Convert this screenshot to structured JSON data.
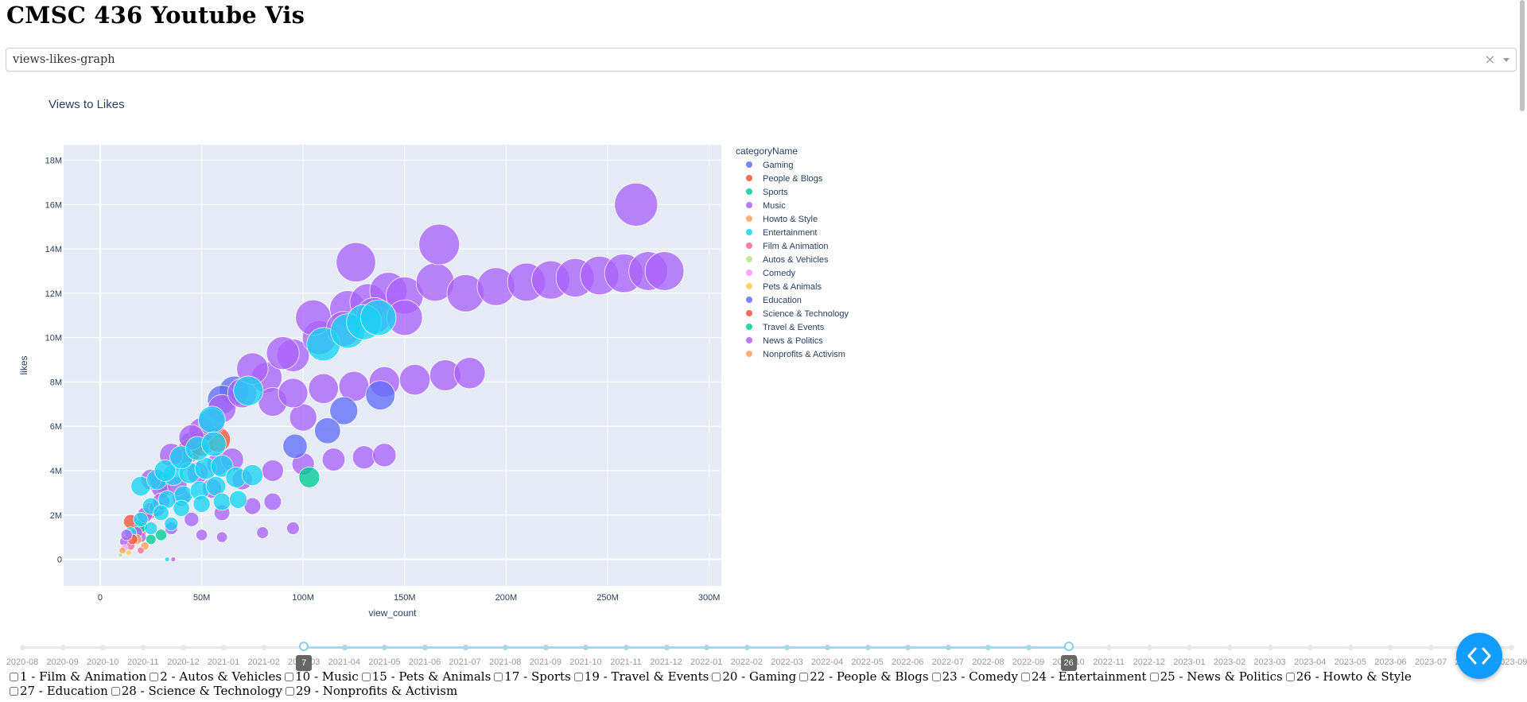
{
  "app": {
    "title": "CMSC 436 Youtube Vis"
  },
  "dropdown": {
    "value": "views-likes-graph",
    "clear_icon": "×"
  },
  "chart_data": {
    "type": "scatter",
    "title": "Views to Likes",
    "xlabel": "view_count",
    "ylabel": "likes",
    "xlim": [
      -18000000,
      306000000
    ],
    "ylim": [
      -1200000,
      18700000
    ],
    "xticks": [
      0,
      50000000,
      100000000,
      150000000,
      200000000,
      250000000,
      300000000
    ],
    "xtick_labels": [
      "0",
      "50M",
      "100M",
      "150M",
      "200M",
      "250M",
      "300M"
    ],
    "yticks": [
      0,
      2000000,
      4000000,
      6000000,
      8000000,
      10000000,
      12000000,
      14000000,
      16000000,
      18000000
    ],
    "ytick_labels": [
      "0",
      "2M",
      "4M",
      "6M",
      "8M",
      "10M",
      "12M",
      "14M",
      "16M",
      "18M"
    ],
    "grid": true,
    "legend_title": "categoryName",
    "legend_position": "right",
    "series": [
      {
        "name": "Gaming",
        "color": "#636efa",
        "points": [
          [
            66000000,
            7600000
          ],
          [
            60000000,
            7200000
          ],
          [
            45000000,
            5200000
          ],
          [
            30000000,
            3500000
          ]
        ]
      },
      {
        "name": "People & Blogs",
        "color": "#EF553B",
        "points": [
          [
            44000000,
            4900000
          ],
          [
            50000000,
            5200000
          ],
          [
            58000000,
            5400000
          ],
          [
            15000000,
            1700000
          ],
          [
            25000000,
            2200000
          ],
          [
            20000000,
            1300000
          ]
        ]
      },
      {
        "name": "Sports",
        "color": "#00cc96",
        "points": [
          [
            20000000,
            1500000
          ],
          [
            25000000,
            900000
          ],
          [
            30000000,
            1100000
          ]
        ]
      },
      {
        "name": "Music",
        "color": "#ab63fa",
        "points": [
          [
            22000000,
            2000000
          ],
          [
            30000000,
            3200000
          ],
          [
            40000000,
            4500000
          ],
          [
            50000000,
            5800000
          ],
          [
            60000000,
            6800000
          ],
          [
            70000000,
            7500000
          ],
          [
            82000000,
            8200000
          ],
          [
            95000000,
            9200000
          ],
          [
            108000000,
            10000000
          ],
          [
            122000000,
            11300000
          ],
          [
            132000000,
            11600000
          ],
          [
            142000000,
            12100000
          ],
          [
            150000000,
            11900000
          ],
          [
            165000000,
            12500000
          ],
          [
            180000000,
            12000000
          ],
          [
            195000000,
            12300000
          ],
          [
            210000000,
            12500000
          ],
          [
            222000000,
            12600000
          ],
          [
            234000000,
            12700000
          ],
          [
            246000000,
            12800000
          ],
          [
            258000000,
            12900000
          ],
          [
            270000000,
            13000000
          ],
          [
            278000000,
            13000000
          ],
          [
            126000000,
            13400000
          ],
          [
            167000000,
            14200000
          ],
          [
            264000000,
            16000000
          ],
          [
            75000000,
            8600000
          ],
          [
            90000000,
            9300000
          ],
          [
            105000000,
            10900000
          ],
          [
            120000000,
            10400000
          ],
          [
            135000000,
            11000000
          ],
          [
            150000000,
            10900000
          ],
          [
            100000000,
            6400000
          ],
          [
            85000000,
            7100000
          ],
          [
            95000000,
            7500000
          ],
          [
            110000000,
            7700000
          ],
          [
            125000000,
            7800000
          ],
          [
            140000000,
            8000000
          ],
          [
            155000000,
            8100000
          ],
          [
            170000000,
            8300000
          ],
          [
            182000000,
            8400000
          ],
          [
            55000000,
            6200000
          ],
          [
            45000000,
            5500000
          ],
          [
            35000000,
            4700000
          ],
          [
            25000000,
            3600000
          ],
          [
            28000000,
            2300000
          ],
          [
            40000000,
            2800000
          ],
          [
            55000000,
            3200000
          ],
          [
            70000000,
            3600000
          ],
          [
            85000000,
            4000000
          ],
          [
            100000000,
            4300000
          ],
          [
            115000000,
            4500000
          ],
          [
            130000000,
            4600000
          ],
          [
            140000000,
            4700000
          ],
          [
            45000000,
            1800000
          ],
          [
            60000000,
            2100000
          ],
          [
            75000000,
            2400000
          ],
          [
            85000000,
            2600000
          ],
          [
            20000000,
            1000000
          ],
          [
            35000000,
            1400000
          ],
          [
            50000000,
            1100000
          ],
          [
            60000000,
            1000000
          ],
          [
            80000000,
            1200000
          ],
          [
            95000000,
            1400000
          ],
          [
            12000000,
            800000
          ],
          [
            18000000,
            1200000
          ],
          [
            30000000,
            2600000
          ],
          [
            38000000,
            3300000
          ],
          [
            48000000,
            3900000
          ],
          [
            58000000,
            4300000
          ],
          [
            65000000,
            4500000
          ],
          [
            36000000,
            0
          ]
        ]
      },
      {
        "name": "Howto & Style",
        "color": "#FFA15A",
        "points": [
          [
            18000000,
            900000
          ],
          [
            22000000,
            600000
          ]
        ]
      },
      {
        "name": "Entertainment",
        "color": "#19d3f3",
        "points": [
          [
            55000000,
            6300000
          ],
          [
            73000000,
            7600000
          ],
          [
            110000000,
            9700000
          ],
          [
            122000000,
            10300000
          ],
          [
            130000000,
            10700000
          ],
          [
            137000000,
            10900000
          ],
          [
            20000000,
            3300000
          ],
          [
            28000000,
            3600000
          ],
          [
            36000000,
            3800000
          ],
          [
            44000000,
            3900000
          ],
          [
            52000000,
            4100000
          ],
          [
            60000000,
            4200000
          ],
          [
            25000000,
            2400000
          ],
          [
            33000000,
            2700000
          ],
          [
            41000000,
            2900000
          ],
          [
            49000000,
            3100000
          ],
          [
            57000000,
            3300000
          ],
          [
            67000000,
            3700000
          ],
          [
            75000000,
            3800000
          ],
          [
            20000000,
            1800000
          ],
          [
            30000000,
            2100000
          ],
          [
            40000000,
            2300000
          ],
          [
            50000000,
            2500000
          ],
          [
            60000000,
            2600000
          ],
          [
            68000000,
            2700000
          ],
          [
            15000000,
            1200000
          ],
          [
            25000000,
            1400000
          ],
          [
            35000000,
            1600000
          ],
          [
            32000000,
            4000000
          ],
          [
            40000000,
            4600000
          ],
          [
            48000000,
            5000000
          ],
          [
            56000000,
            5200000
          ],
          [
            33000000,
            0
          ]
        ]
      },
      {
        "name": "Film & Animation",
        "color": "#FF6692",
        "points": [
          [
            15000000,
            600000
          ],
          [
            20000000,
            400000
          ]
        ]
      },
      {
        "name": "Autos & Vehicles",
        "color": "#B6E880",
        "points": [
          [
            10000000,
            200000
          ]
        ]
      },
      {
        "name": "Comedy",
        "color": "#FF97FF",
        "points": [
          [
            12000000,
            500000
          ]
        ]
      },
      {
        "name": "Pets & Animals",
        "color": "#FECB52",
        "points": [
          [
            14000000,
            300000
          ]
        ]
      },
      {
        "name": "Education",
        "color": "#636efa",
        "points": [
          [
            120000000,
            6700000
          ],
          [
            112000000,
            5800000
          ],
          [
            96000000,
            5100000
          ],
          [
            138000000,
            7400000
          ]
        ]
      },
      {
        "name": "Science & Technology",
        "color": "#EF553B",
        "points": [
          [
            16000000,
            900000
          ]
        ]
      },
      {
        "name": "Travel & Events",
        "color": "#00cc96",
        "points": [
          [
            103000000,
            3700000
          ]
        ]
      },
      {
        "name": "News & Politics",
        "color": "#ab63fa",
        "points": [
          [
            13000000,
            1100000
          ]
        ]
      },
      {
        "name": "Nonprofits & Activism",
        "color": "#FFA15A",
        "points": [
          [
            11000000,
            400000
          ]
        ]
      }
    ]
  },
  "slider": {
    "marks": [
      "2020-08",
      "2020-09",
      "2020-10",
      "2020-11",
      "2020-12",
      "2021-01",
      "2021-02",
      "2021-03",
      "2021-04",
      "2021-05",
      "2021-06",
      "2021-07",
      "2021-08",
      "2021-09",
      "2021-10",
      "2021-11",
      "2021-12",
      "2022-01",
      "2022-02",
      "2022-03",
      "2022-04",
      "2022-05",
      "2022-06",
      "2022-07",
      "2022-08",
      "2022-09",
      "2022-10",
      "2022-11",
      "2022-12",
      "2023-01",
      "2023-02",
      "2023-03",
      "2023-04",
      "2023-05",
      "2023-06",
      "2023-07",
      "2023-08",
      "2023-09"
    ],
    "start_index": 7,
    "end_index": 26,
    "start_tooltip": "7",
    "end_tooltip": "26"
  },
  "categories": [
    "1 - Film & Animation",
    "2 - Autos & Vehicles",
    "10 - Music",
    "15 - Pets & Animals",
    "17 - Sports",
    "19 - Travel & Events",
    "20 - Gaming",
    "22 - People & Blogs",
    "23 - Comedy",
    "24 - Entertainment",
    "25 - News & Politics",
    "26 - Howto & Style",
    "27 - Education",
    "28 - Science & Technology",
    "29 - Nonprofits & Activism"
  ],
  "fab": {
    "icon": "code-icon"
  }
}
